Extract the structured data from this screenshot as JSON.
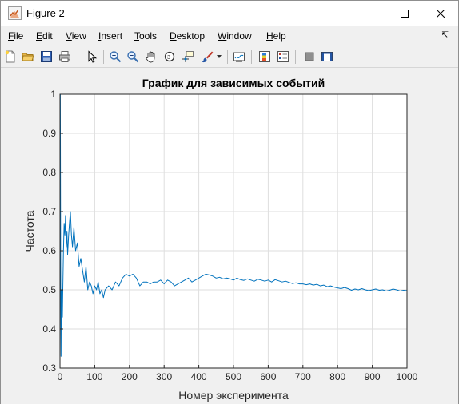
{
  "window": {
    "title": "Figure 2"
  },
  "menu": {
    "items": [
      "File",
      "Edit",
      "View",
      "Insert",
      "Tools",
      "Desktop",
      "Window",
      "Help"
    ]
  },
  "toolbar": {
    "icons": [
      "new-figure-icon",
      "open-icon",
      "save-icon",
      "print-icon",
      "pointer-icon",
      "zoom-in-icon",
      "zoom-out-icon",
      "pan-icon",
      "rotate-3d-icon",
      "data-cursor-icon",
      "brush-icon",
      "brush-dropdown-icon",
      "link-plot-icon",
      "colorbar-icon",
      "legend-icon",
      "hide-plot-tools-icon",
      "show-plot-tools-icon"
    ]
  },
  "colors": {
    "line": "#0072bd",
    "grid": "#dedede",
    "axes_bg": "#ffffff",
    "figure_bg": "#f0f0f0"
  },
  "chart_data": {
    "type": "line",
    "title": "График для зависимых событий",
    "xlabel": "Номер эксперимента",
    "ylabel": "Частота",
    "xlim": [
      0,
      1000
    ],
    "ylim": [
      0.3,
      1
    ],
    "xticks": [
      "0",
      "100",
      "200",
      "300",
      "400",
      "500",
      "600",
      "700",
      "800",
      "900",
      "1000"
    ],
    "yticks": [
      "0.3",
      "0.4",
      "0.5",
      "0.6",
      "0.7",
      "0.8",
      "0.9",
      "1"
    ],
    "grid": true,
    "series": [
      {
        "x": [
          1,
          2,
          3,
          4,
          5,
          6,
          7,
          8,
          10,
          12,
          14,
          16,
          18,
          20,
          22,
          25,
          28,
          30,
          33,
          36,
          40,
          45,
          50,
          55,
          60,
          65,
          70,
          75,
          80,
          85,
          90,
          95,
          100,
          105,
          110,
          115,
          120,
          125,
          130,
          140,
          150,
          160,
          170,
          180,
          190,
          200,
          210,
          220,
          230,
          240,
          250,
          260,
          270,
          280,
          290,
          300,
          310,
          320,
          330,
          340,
          350,
          360,
          370,
          380,
          390,
          400,
          410,
          420,
          430,
          440,
          450,
          460,
          470,
          480,
          490,
          500,
          510,
          520,
          530,
          540,
          550,
          560,
          570,
          580,
          590,
          600,
          610,
          620,
          630,
          640,
          650,
          660,
          670,
          680,
          690,
          700,
          710,
          720,
          730,
          740,
          750,
          760,
          770,
          780,
          790,
          800,
          810,
          820,
          830,
          840,
          850,
          860,
          870,
          880,
          890,
          900,
          910,
          920,
          930,
          940,
          950,
          960,
          970,
          980,
          990,
          1000
        ],
        "y": [
          1.0,
          0.5,
          0.33,
          0.5,
          0.4,
          0.5,
          0.43,
          0.5,
          0.6,
          0.67,
          0.64,
          0.69,
          0.61,
          0.65,
          0.59,
          0.64,
          0.68,
          0.7,
          0.64,
          0.61,
          0.66,
          0.6,
          0.62,
          0.56,
          0.58,
          0.55,
          0.52,
          0.56,
          0.5,
          0.52,
          0.51,
          0.49,
          0.51,
          0.5,
          0.52,
          0.49,
          0.5,
          0.48,
          0.5,
          0.51,
          0.5,
          0.52,
          0.51,
          0.53,
          0.54,
          0.535,
          0.54,
          0.53,
          0.51,
          0.52,
          0.52,
          0.515,
          0.52,
          0.52,
          0.525,
          0.515,
          0.525,
          0.52,
          0.51,
          0.515,
          0.52,
          0.525,
          0.53,
          0.52,
          0.525,
          0.53,
          0.535,
          0.54,
          0.538,
          0.535,
          0.53,
          0.532,
          0.528,
          0.53,
          0.528,
          0.525,
          0.53,
          0.526,
          0.524,
          0.528,
          0.525,
          0.522,
          0.527,
          0.525,
          0.522,
          0.525,
          0.52,
          0.526,
          0.523,
          0.52,
          0.522,
          0.519,
          0.516,
          0.518,
          0.515,
          0.515,
          0.513,
          0.515,
          0.512,
          0.514,
          0.51,
          0.512,
          0.508,
          0.51,
          0.507,
          0.505,
          0.503,
          0.506,
          0.503,
          0.499,
          0.502,
          0.5,
          0.503,
          0.5,
          0.498,
          0.5,
          0.502,
          0.499,
          0.5,
          0.497,
          0.499,
          0.502,
          0.5,
          0.497,
          0.499,
          0.498
        ]
      }
    ]
  }
}
